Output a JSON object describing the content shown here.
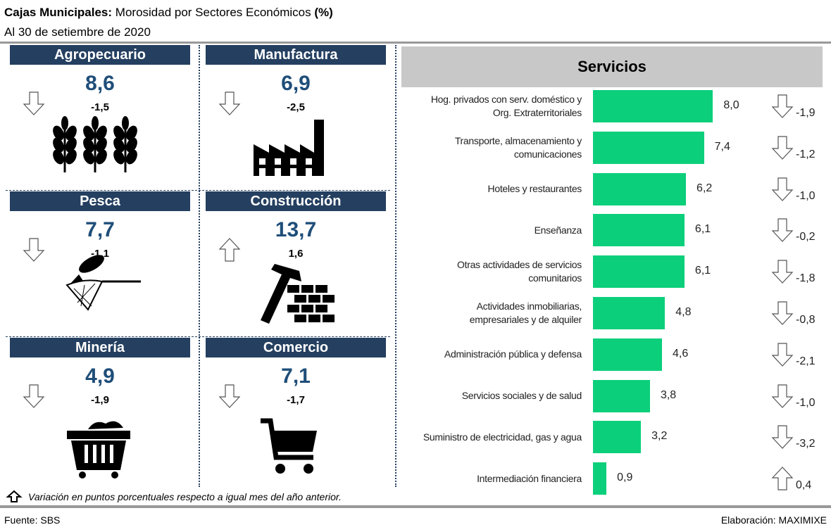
{
  "header": {
    "title_bold": "Cajas Municipales:",
    "title": "Morosidad por Sectores Económicos",
    "title_unit": "(%)",
    "subtitle": "Al 30 de setiembre de 2020"
  },
  "tiles": [
    {
      "name": "Agropecuario",
      "value": "8,6",
      "change": "-1,5"
    },
    {
      "name": "Manufactura",
      "value": "6,9",
      "change": "-2,5"
    },
    {
      "name": "Pesca",
      "value": "7,7",
      "change": "-1,1"
    },
    {
      "name": "Construcción",
      "value": "13,7",
      "change": "1,6"
    },
    {
      "name": "Minería",
      "value": "4,9",
      "change": "-1,9"
    },
    {
      "name": "Comercio",
      "value": "7,1",
      "change": "-1,7"
    }
  ],
  "chart_data": {
    "type": "bar",
    "orientation": "horizontal",
    "title": "Servicios",
    "color": "#0ccf7b",
    "categories": [
      "Hog. privados con serv. doméstico y Org. Extraterritoriales",
      "Transporte, almacenamiento y comunicaciones",
      "Hoteles y restaurantes",
      "Enseñanza",
      "Otras actividades de servicios comunitarios",
      "Actividades inmobiliarias, empresariales y de alquiler",
      "Administración pública y defensa",
      "Servicios sociales y de salud",
      "Suministro de electricidad, gas y agua",
      "Intermediación financiera"
    ],
    "values": [
      8.0,
      7.4,
      6.2,
      6.1,
      6.1,
      4.8,
      4.6,
      3.8,
      3.2,
      0.9
    ],
    "value_labels": [
      "8,0",
      "7,4",
      "6,2",
      "6,1",
      "6,1",
      "4,8",
      "4,6",
      "3,8",
      "3,2",
      "0,9"
    ],
    "changes": [
      -1.9,
      -1.2,
      -1.0,
      -0.2,
      -1.8,
      -0.8,
      -2.1,
      -1.0,
      -3.2,
      0.4
    ],
    "change_labels": [
      "-1,9",
      "-1,2",
      "-1,0",
      "-0,2",
      "-1,8",
      "-0,8",
      "-2,1",
      "-1,0",
      "-3,2",
      "0,4"
    ]
  },
  "note": "Variación en puntos porcentuales respecto a igual mes del año anterior.",
  "footer": {
    "source": "Fuente: SBS",
    "credit": "Elaboración: MAXIMIXE"
  }
}
